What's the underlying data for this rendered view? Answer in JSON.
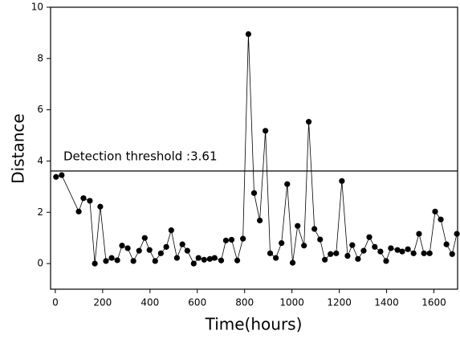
{
  "chart_data": {
    "type": "line",
    "xlabel": "Time(hours)",
    "ylabel": "Distance",
    "x": [
      3,
      27,
      99,
      119,
      146,
      167,
      190,
      214,
      238,
      262,
      282,
      306,
      330,
      354,
      378,
      398,
      422,
      446,
      469,
      490,
      514,
      537,
      558,
      585,
      605,
      629,
      653,
      673,
      701,
      721,
      745,
      769,
      793,
      816,
      840,
      864,
      888,
      908,
      932,
      956,
      980,
      1003,
      1024,
      1051,
      1071,
      1095,
      1119,
      1139,
      1163,
      1187,
      1211,
      1235,
      1255,
      1279,
      1303,
      1327,
      1350,
      1374,
      1398,
      1418,
      1446,
      1466,
      1490,
      1514,
      1537,
      1558,
      1582,
      1605,
      1629,
      1653,
      1677,
      1697
    ],
    "series": [
      {
        "color": "#000000",
        "values": [
          3.38,
          3.45,
          2.03,
          2.55,
          2.45,
          0.0,
          2.22,
          0.1,
          0.22,
          0.13,
          0.7,
          0.6,
          0.1,
          0.5,
          1.0,
          0.53,
          0.1,
          0.4,
          0.65,
          1.3,
          0.22,
          0.75,
          0.5,
          0.0,
          0.22,
          0.15,
          0.18,
          0.22,
          0.12,
          0.9,
          0.93,
          0.12,
          0.97,
          8.95,
          2.75,
          1.68,
          5.18,
          0.4,
          0.22,
          0.8,
          3.1,
          0.03,
          1.47,
          0.7,
          5.53,
          1.35,
          0.94,
          0.15,
          0.37,
          0.4,
          3.22,
          0.3,
          0.72,
          0.18,
          0.5,
          1.03,
          0.65,
          0.47,
          0.1,
          0.6,
          0.53,
          0.47,
          0.56,
          0.4,
          1.16,
          0.4,
          0.4,
          2.03,
          1.72,
          0.75,
          0.37,
          1.16
        ]
      }
    ],
    "threshold": {
      "value": 3.61,
      "label": "Detection threshold :3.61"
    },
    "xlim": [
      -20,
      1700
    ],
    "xticks": [
      0,
      200,
      400,
      600,
      800,
      1000,
      1200,
      1400,
      1600
    ],
    "ylim": [
      -1,
      10
    ],
    "yticks": [
      0,
      2,
      4,
      6,
      8,
      10
    ]
  }
}
